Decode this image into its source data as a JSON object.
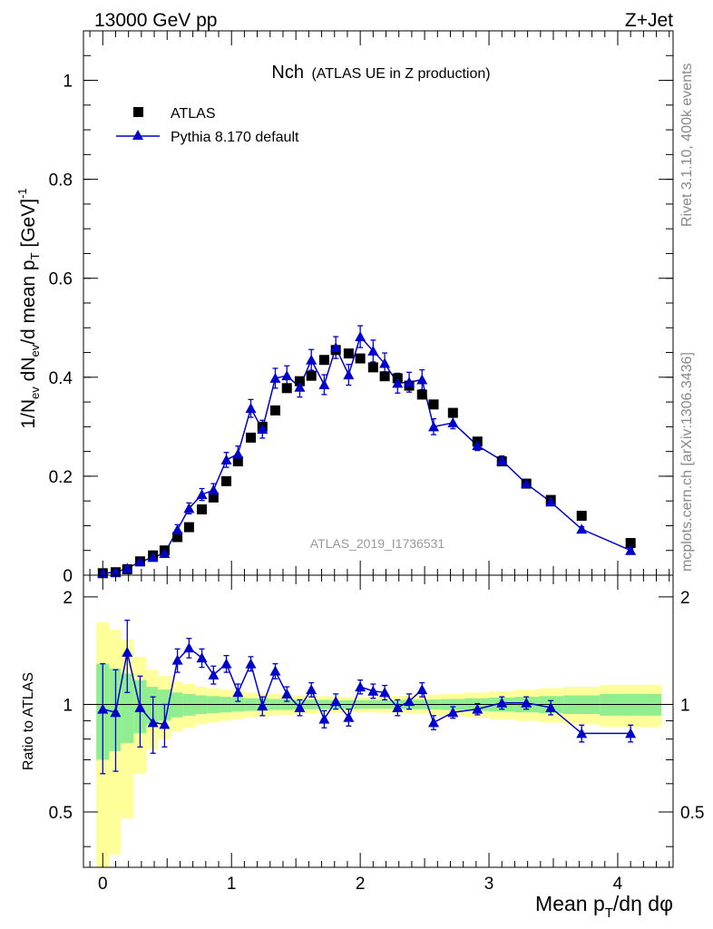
{
  "header": {
    "left": "13000 GeV pp",
    "right": "Z+Jet"
  },
  "side": {
    "rivet": "Rivet 3.1.10,  400k events",
    "mcplots": "mcplots.cern.ch [arXiv:1306.3436]"
  },
  "chart_data": [
    {
      "type": "scatter",
      "title": "Nch",
      "subtitle": "(ATLAS UE in Z production)",
      "watermark": "ATLAS_2019_I1736531",
      "ylabel": "1/N_ev dN_ev/d mean p_T [GeV]^-1",
      "xlabel": "Mean p_T/dη dφ",
      "xlim": [
        -0.15,
        4.43
      ],
      "ylim": [
        0,
        1.1
      ],
      "yticks": [
        0,
        0.2,
        0.4,
        0.6,
        0.8,
        1
      ],
      "ytick_labels": [
        "0",
        "0.2",
        "0.4",
        "0.6",
        "0.8",
        "1"
      ],
      "xticks": [
        0,
        1,
        2,
        3,
        4
      ],
      "xtick_labels": [
        "0",
        "1",
        "2",
        "3",
        "4"
      ],
      "legend": {
        "position": "top-left",
        "entries": [
          "ATLAS",
          "Pythia 8.170 default"
        ]
      },
      "series": [
        {
          "name": "ATLAS",
          "marker": "square",
          "color": "#000000",
          "points": [
            {
              "x": 0.0,
              "y": 0.004
            },
            {
              "x": 0.1,
              "y": 0.006
            },
            {
              "x": 0.19,
              "y": 0.012
            },
            {
              "x": 0.29,
              "y": 0.028
            },
            {
              "x": 0.39,
              "y": 0.04
            },
            {
              "x": 0.48,
              "y": 0.05
            },
            {
              "x": 0.58,
              "y": 0.077
            },
            {
              "x": 0.67,
              "y": 0.097
            },
            {
              "x": 0.77,
              "y": 0.133
            },
            {
              "x": 0.86,
              "y": 0.157
            },
            {
              "x": 0.96,
              "y": 0.19
            },
            {
              "x": 1.05,
              "y": 0.23
            },
            {
              "x": 1.15,
              "y": 0.278
            },
            {
              "x": 1.24,
              "y": 0.3
            },
            {
              "x": 1.34,
              "y": 0.333
            },
            {
              "x": 1.43,
              "y": 0.378
            },
            {
              "x": 1.53,
              "y": 0.392
            },
            {
              "x": 1.62,
              "y": 0.403
            },
            {
              "x": 1.72,
              "y": 0.435
            },
            {
              "x": 1.81,
              "y": 0.455
            },
            {
              "x": 1.91,
              "y": 0.448
            },
            {
              "x": 2.0,
              "y": 0.438
            },
            {
              "x": 2.1,
              "y": 0.42
            },
            {
              "x": 2.19,
              "y": 0.402
            },
            {
              "x": 2.29,
              "y": 0.398
            },
            {
              "x": 2.38,
              "y": 0.383
            },
            {
              "x": 2.48,
              "y": 0.365
            },
            {
              "x": 2.57,
              "y": 0.345
            },
            {
              "x": 2.72,
              "y": 0.328
            },
            {
              "x": 2.91,
              "y": 0.27
            },
            {
              "x": 3.1,
              "y": 0.23
            },
            {
              "x": 3.29,
              "y": 0.185
            },
            {
              "x": 3.48,
              "y": 0.152
            },
            {
              "x": 3.72,
              "y": 0.12
            },
            {
              "x": 4.1,
              "y": 0.065
            }
          ]
        },
        {
          "name": "Pythia 8.170 default",
          "marker": "triangle",
          "color": "#0000cc",
          "points": [
            {
              "x": 0.0,
              "y": 0.004,
              "err": 0.002
            },
            {
              "x": 0.1,
              "y": 0.006,
              "err": 0.002
            },
            {
              "x": 0.19,
              "y": 0.014,
              "err": 0.004
            },
            {
              "x": 0.29,
              "y": 0.027,
              "err": 0.005
            },
            {
              "x": 0.39,
              "y": 0.036,
              "err": 0.006
            },
            {
              "x": 0.48,
              "y": 0.044,
              "err": 0.007
            },
            {
              "x": 0.58,
              "y": 0.092,
              "err": 0.01
            },
            {
              "x": 0.67,
              "y": 0.135,
              "err": 0.011
            },
            {
              "x": 0.77,
              "y": 0.163,
              "err": 0.012
            },
            {
              "x": 0.86,
              "y": 0.172,
              "err": 0.013
            },
            {
              "x": 0.96,
              "y": 0.233,
              "err": 0.015
            },
            {
              "x": 1.05,
              "y": 0.245,
              "err": 0.016
            },
            {
              "x": 1.15,
              "y": 0.337,
              "err": 0.018
            },
            {
              "x": 1.24,
              "y": 0.295,
              "err": 0.018
            },
            {
              "x": 1.34,
              "y": 0.398,
              "err": 0.02
            },
            {
              "x": 1.43,
              "y": 0.403,
              "err": 0.02
            },
            {
              "x": 1.53,
              "y": 0.38,
              "err": 0.02
            },
            {
              "x": 1.62,
              "y": 0.435,
              "err": 0.021
            },
            {
              "x": 1.72,
              "y": 0.385,
              "err": 0.02
            },
            {
              "x": 1.81,
              "y": 0.46,
              "err": 0.022
            },
            {
              "x": 1.91,
              "y": 0.405,
              "err": 0.021
            },
            {
              "x": 2.0,
              "y": 0.482,
              "err": 0.022
            },
            {
              "x": 2.1,
              "y": 0.453,
              "err": 0.022
            },
            {
              "x": 2.19,
              "y": 0.428,
              "err": 0.021
            },
            {
              "x": 2.29,
              "y": 0.388,
              "err": 0.02
            },
            {
              "x": 2.38,
              "y": 0.39,
              "err": 0.02
            },
            {
              "x": 2.48,
              "y": 0.395,
              "err": 0.02
            },
            {
              "x": 2.57,
              "y": 0.3,
              "err": 0.016
            },
            {
              "x": 2.72,
              "y": 0.308,
              "err": 0.012
            },
            {
              "x": 2.91,
              "y": 0.262,
              "err": 0.01
            },
            {
              "x": 3.1,
              "y": 0.232,
              "err": 0.009
            },
            {
              "x": 3.29,
              "y": 0.185,
              "err": 0.008
            },
            {
              "x": 3.48,
              "y": 0.148,
              "err": 0.007
            },
            {
              "x": 3.72,
              "y": 0.093,
              "err": 0.005
            },
            {
              "x": 4.1,
              "y": 0.05,
              "err": 0.004
            }
          ]
        }
      ]
    },
    {
      "type": "scatter",
      "title": "Ratio to ATLAS",
      "ylabel": "Ratio to ATLAS",
      "xlabel": "Mean p_T/dη dφ",
      "xlim": [
        -0.15,
        4.43
      ],
      "ylim": [
        0.35,
        2.3
      ],
      "yticks": [
        0.5,
        1,
        2
      ],
      "ytick_labels": [
        "0.5",
        "1",
        "2"
      ],
      "xticks": [
        0,
        1,
        2,
        3,
        4
      ],
      "xtick_labels": [
        "0",
        "1",
        "2",
        "3",
        "4"
      ],
      "bands": {
        "edges": [
          -0.05,
          0.05,
          0.14,
          0.24,
          0.34,
          0.43,
          0.53,
          0.62,
          0.72,
          0.81,
          0.91,
          1.0,
          1.1,
          1.19,
          1.29,
          1.38,
          1.48,
          1.57,
          1.67,
          1.76,
          1.86,
          1.95,
          2.05,
          2.14,
          2.24,
          2.33,
          2.43,
          2.52,
          2.62,
          2.81,
          3.0,
          3.2,
          3.39,
          3.58,
          3.86,
          4.34
        ],
        "stat_half_width": [
          0.3,
          0.26,
          0.22,
          0.17,
          0.12,
          0.1,
          0.08,
          0.07,
          0.06,
          0.055,
          0.05,
          0.045,
          0.04,
          0.04,
          0.035,
          0.035,
          0.03,
          0.03,
          0.03,
          0.028,
          0.028,
          0.028,
          0.028,
          0.028,
          0.028,
          0.03,
          0.03,
          0.032,
          0.035,
          0.04,
          0.045,
          0.05,
          0.055,
          0.06,
          0.07
        ],
        "total_half_width": [
          0.7,
          0.62,
          0.52,
          0.36,
          0.25,
          0.2,
          0.16,
          0.14,
          0.12,
          0.11,
          0.1,
          0.09,
          0.08,
          0.075,
          0.07,
          0.065,
          0.06,
          0.058,
          0.055,
          0.052,
          0.05,
          0.05,
          0.05,
          0.052,
          0.055,
          0.058,
          0.06,
          0.065,
          0.07,
          0.08,
          0.09,
          0.1,
          0.11,
          0.12,
          0.135
        ],
        "stat_color": "#90ee90",
        "total_color": "#ffff99"
      },
      "series": [
        {
          "name": "Pythia 8.170 default",
          "color": "#0000cc",
          "points": [
            {
              "x": 0.0,
              "y": 0.97,
              "err": 0.33
            },
            {
              "x": 0.1,
              "y": 0.95,
              "err": 0.3
            },
            {
              "x": 0.19,
              "y": 1.4,
              "err": 0.32
            },
            {
              "x": 0.29,
              "y": 0.98,
              "err": 0.22
            },
            {
              "x": 0.39,
              "y": 0.89,
              "err": 0.16
            },
            {
              "x": 0.48,
              "y": 0.88,
              "err": 0.12
            },
            {
              "x": 0.58,
              "y": 1.33,
              "err": 0.1
            },
            {
              "x": 0.67,
              "y": 1.44,
              "err": 0.09
            },
            {
              "x": 0.77,
              "y": 1.35,
              "err": 0.08
            },
            {
              "x": 0.86,
              "y": 1.21,
              "err": 0.07
            },
            {
              "x": 0.96,
              "y": 1.3,
              "err": 0.07
            },
            {
              "x": 1.05,
              "y": 1.08,
              "err": 0.06
            },
            {
              "x": 1.15,
              "y": 1.3,
              "err": 0.06
            },
            {
              "x": 1.24,
              "y": 0.99,
              "err": 0.06
            },
            {
              "x": 1.34,
              "y": 1.24,
              "err": 0.06
            },
            {
              "x": 1.43,
              "y": 1.07,
              "err": 0.05
            },
            {
              "x": 1.53,
              "y": 0.98,
              "err": 0.05
            },
            {
              "x": 1.62,
              "y": 1.1,
              "err": 0.05
            },
            {
              "x": 1.72,
              "y": 0.91,
              "err": 0.05
            },
            {
              "x": 1.81,
              "y": 1.02,
              "err": 0.05
            },
            {
              "x": 1.91,
              "y": 0.92,
              "err": 0.05
            },
            {
              "x": 2.0,
              "y": 1.12,
              "err": 0.05
            },
            {
              "x": 2.1,
              "y": 1.09,
              "err": 0.05
            },
            {
              "x": 2.19,
              "y": 1.08,
              "err": 0.05
            },
            {
              "x": 2.29,
              "y": 0.98,
              "err": 0.05
            },
            {
              "x": 2.38,
              "y": 1.02,
              "err": 0.05
            },
            {
              "x": 2.48,
              "y": 1.1,
              "err": 0.05
            },
            {
              "x": 2.57,
              "y": 0.89,
              "err": 0.04
            },
            {
              "x": 2.72,
              "y": 0.95,
              "err": 0.035
            },
            {
              "x": 2.91,
              "y": 0.97,
              "err": 0.035
            },
            {
              "x": 3.1,
              "y": 1.01,
              "err": 0.04
            },
            {
              "x": 3.29,
              "y": 1.01,
              "err": 0.04
            },
            {
              "x": 3.48,
              "y": 0.98,
              "err": 0.045
            },
            {
              "x": 3.72,
              "y": 0.83,
              "err": 0.045
            },
            {
              "x": 4.1,
              "y": 0.83,
              "err": 0.045
            }
          ]
        }
      ]
    }
  ]
}
